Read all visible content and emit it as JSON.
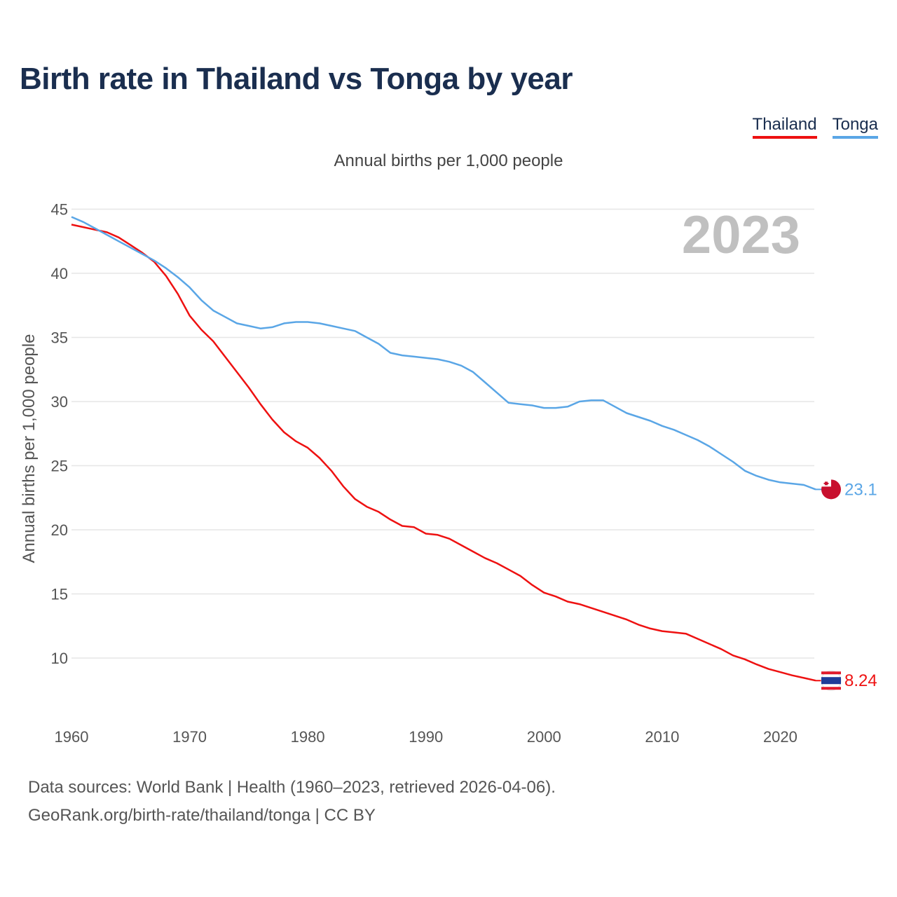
{
  "title": "Birth rate in Thailand vs Tonga by year",
  "subtitle": "Annual births per 1,000 people",
  "year_badge": "2023",
  "legend": [
    {
      "label": "Thailand",
      "color": "#ee1111"
    },
    {
      "label": "Tonga",
      "color": "#5aa6e6"
    }
  ],
  "footer": {
    "line1": "Data sources: World Bank | Health (1960–2023, retrieved 2026-04-06).",
    "line2": "GeoRank.org/birth-rate/thailand/tonga | CC BY"
  },
  "chart_data": {
    "type": "line",
    "title": "Birth rate in Thailand vs Tonga by year",
    "xlabel": "",
    "ylabel": "Annual births per 1,000 people",
    "xlim": [
      1960,
      2023
    ],
    "ylim": [
      6,
      46
    ],
    "yticks": [
      10,
      15,
      20,
      25,
      30,
      35,
      40,
      45
    ],
    "xticks": [
      1960,
      1970,
      1980,
      1990,
      2000,
      2010,
      2020
    ],
    "grid": true,
    "x": [
      1960,
      1961,
      1962,
      1963,
      1964,
      1965,
      1966,
      1967,
      1968,
      1969,
      1970,
      1971,
      1972,
      1973,
      1974,
      1975,
      1976,
      1977,
      1978,
      1979,
      1980,
      1981,
      1982,
      1983,
      1984,
      1985,
      1986,
      1987,
      1988,
      1989,
      1990,
      1991,
      1992,
      1993,
      1994,
      1995,
      1996,
      1997,
      1998,
      1999,
      2000,
      2001,
      2002,
      2003,
      2004,
      2005,
      2006,
      2007,
      2008,
      2009,
      2010,
      2011,
      2012,
      2013,
      2014,
      2015,
      2016,
      2017,
      2018,
      2019,
      2020,
      2021,
      2022,
      2023
    ],
    "series": [
      {
        "name": "Thailand",
        "color": "#ee1111",
        "end_label": "8.24",
        "values": [
          43.8,
          43.6,
          43.4,
          43.2,
          42.8,
          42.2,
          41.6,
          40.9,
          39.8,
          38.4,
          36.7,
          35.6,
          34.7,
          33.5,
          32.3,
          31.1,
          29.8,
          28.6,
          27.6,
          26.9,
          26.4,
          25.6,
          24.6,
          23.4,
          22.4,
          21.8,
          21.4,
          20.8,
          20.3,
          20.2,
          19.7,
          19.6,
          19.3,
          18.8,
          18.3,
          17.8,
          17.4,
          16.9,
          16.4,
          15.7,
          15.1,
          14.8,
          14.4,
          14.2,
          13.9,
          13.6,
          13.3,
          13.0,
          12.6,
          12.3,
          12.1,
          12.0,
          11.9,
          11.5,
          11.1,
          10.7,
          10.2,
          9.9,
          9.5,
          9.15,
          8.9,
          8.65,
          8.45,
          8.24
        ]
      },
      {
        "name": "Tonga",
        "color": "#5aa6e6",
        "end_label": "23.1",
        "values": [
          44.4,
          44.0,
          43.5,
          43.0,
          42.5,
          42.0,
          41.5,
          41.0,
          40.4,
          39.7,
          38.9,
          37.9,
          37.1,
          36.6,
          36.1,
          35.9,
          35.7,
          35.8,
          36.1,
          36.2,
          36.2,
          36.1,
          35.9,
          35.7,
          35.5,
          35.0,
          34.5,
          33.8,
          33.6,
          33.5,
          33.4,
          33.3,
          33.1,
          32.8,
          32.3,
          31.5,
          30.7,
          29.9,
          29.8,
          29.7,
          29.5,
          29.5,
          29.6,
          30.0,
          30.1,
          30.1,
          29.6,
          29.1,
          28.8,
          28.5,
          28.1,
          27.8,
          27.4,
          27.0,
          26.5,
          25.9,
          25.3,
          24.6,
          24.2,
          23.9,
          23.7,
          23.6,
          23.5,
          23.15
        ]
      }
    ]
  }
}
